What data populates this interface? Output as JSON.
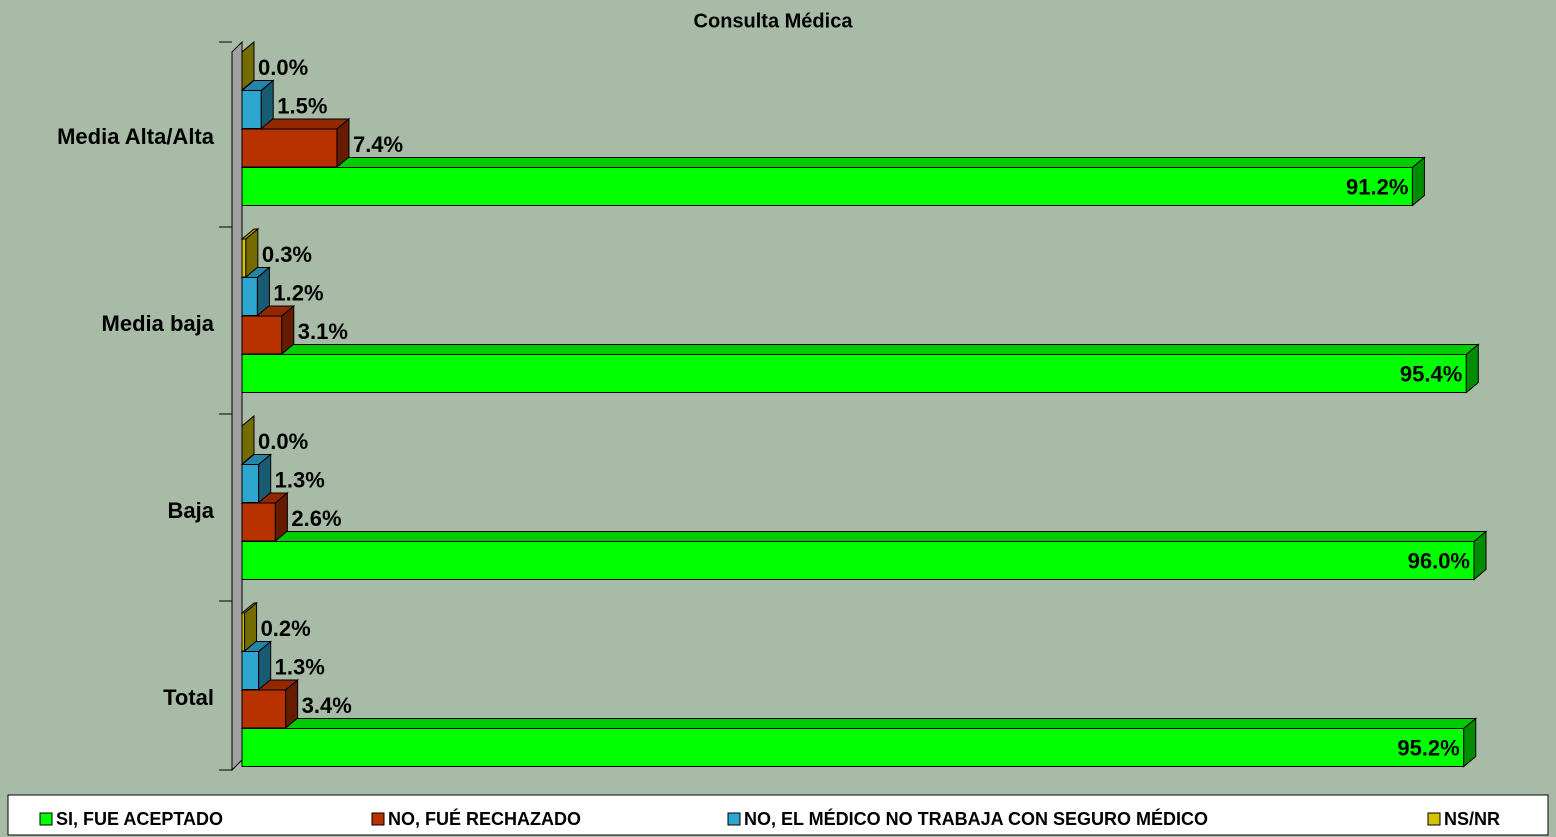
{
  "chart_data": {
    "type": "bar3d_horizontal",
    "title": "Consulta Médica",
    "categories": [
      "Media Alta/Alta",
      "Media baja",
      "Baja",
      "Total"
    ],
    "series": [
      {
        "name": "SI, FUE ACEPTADO",
        "color": "#00ff00",
        "values": [
          91.2,
          95.4,
          96.0,
          95.2
        ],
        "value_labels": [
          "91.2%",
          "95.4%",
          "96.0%",
          "95.2%"
        ]
      },
      {
        "name": "NO, FUÉ RECHAZADO",
        "color": "#b83200",
        "values": [
          7.4,
          3.1,
          2.6,
          3.4
        ],
        "value_labels": [
          "7.4%",
          "3.1%",
          "2.6%",
          "3.4%"
        ]
      },
      {
        "name": "NO, EL MÉDICO NO TRABAJA CON SEGURO MÉDICO",
        "color": "#2ea6cf",
        "values": [
          1.5,
          1.2,
          1.3,
          1.3
        ],
        "value_labels": [
          "1.5%",
          "1.2%",
          "1.3%",
          "1.3%"
        ]
      },
      {
        "name": "NS/NR",
        "color": "#d4c400",
        "values": [
          0.0,
          0.3,
          0.0,
          0.2
        ],
        "value_labels": [
          "0.0%",
          "0.3%",
          "0.0%",
          "0.2%"
        ]
      }
    ],
    "legend": "bottom"
  }
}
